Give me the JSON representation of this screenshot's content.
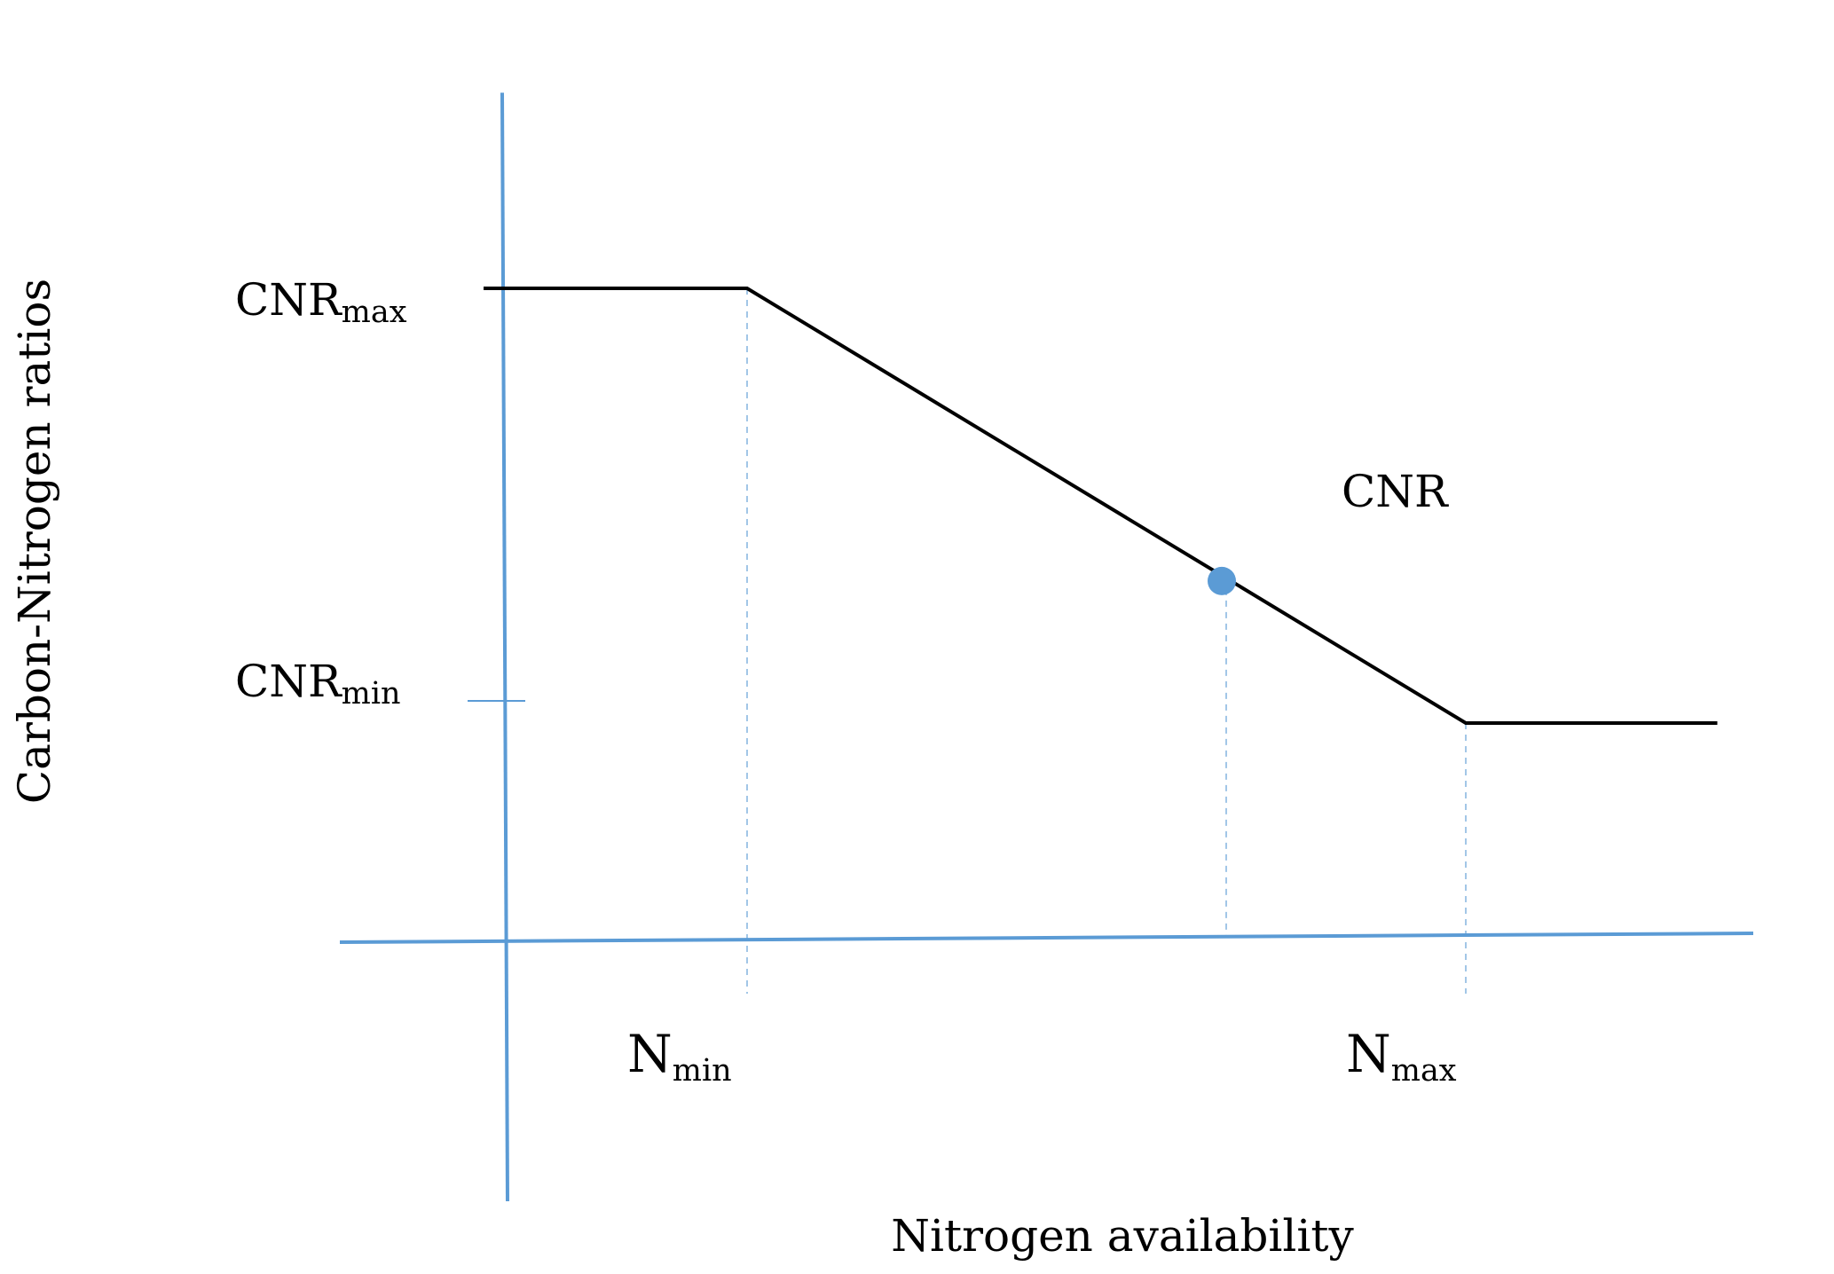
{
  "chart_data": {
    "type": "line",
    "xlabel": "Nitrogen availability",
    "ylabel": "Carbon-Nitrogen ratios",
    "grid": false,
    "axis_color": "#5b9bd5",
    "line_color": "#000000",
    "marker_color": "#5b9bd5",
    "x_ticks": [
      {
        "base": "N",
        "sub": "min",
        "x": 1
      },
      {
        "base": "N",
        "sub": "max",
        "x": 4
      }
    ],
    "y_ticks": [
      {
        "base": "CNR",
        "sub": "max",
        "y": 3
      },
      {
        "base": "CNR",
        "sub": "min",
        "y": 1
      }
    ],
    "series": [
      {
        "x": [
          -0.1,
          1,
          4,
          5.05
        ],
        "y": [
          3,
          3,
          1,
          1
        ]
      }
    ],
    "marker": {
      "label": "CNR",
      "x": 3,
      "y": 1.67
    },
    "xlim": [
      -0.7,
      5.2
    ],
    "ylim": [
      -1.2,
      3.9
    ]
  }
}
